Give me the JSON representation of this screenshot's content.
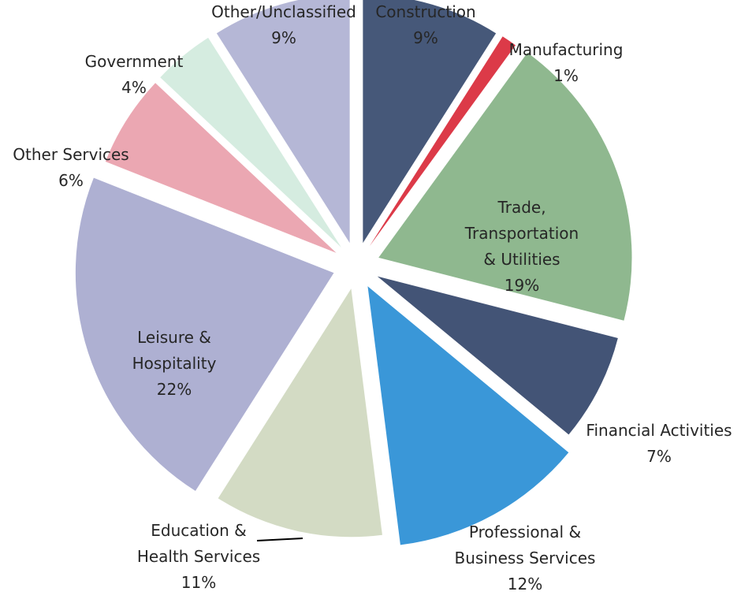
{
  "chart_data": {
    "type": "pie",
    "title": "",
    "exploded": true,
    "legend": "none",
    "slices": [
      {
        "category": "Construction",
        "label_lines": [
          "Construction"
        ],
        "pct_label": "9%",
        "value": 9,
        "color": "#465879"
      },
      {
        "category": "Manufacturing",
        "label_lines": [
          "Manufacturing"
        ],
        "pct_label": "1%",
        "value": 1,
        "color": "#dc3a48"
      },
      {
        "category": "Trade, Transportation & Utilities",
        "label_lines": [
          "Trade,",
          "Transportation",
          "& Utilities"
        ],
        "pct_label": "19%",
        "value": 19,
        "color": "#8fb88f"
      },
      {
        "category": "Financial Activities",
        "label_lines": [
          "Financial Activities"
        ],
        "pct_label": "7%",
        "value": 7,
        "color": "#435476"
      },
      {
        "category": "Professional & Business Services",
        "label_lines": [
          "Professional &",
          "Business Services"
        ],
        "pct_label": "12%",
        "value": 12,
        "color": "#3a97d8"
      },
      {
        "category": "Education & Health Services",
        "label_lines": [
          "Education &",
          "Health Services"
        ],
        "pct_label": "11%",
        "value": 11,
        "color": "#d3dbc4"
      },
      {
        "category": "Leisure & Hospitality",
        "label_lines": [
          "Leisure &",
          "Hospitality"
        ],
        "pct_label": "22%",
        "value": 22,
        "color": "#aeb0d2"
      },
      {
        "category": "Other Services",
        "label_lines": [
          "Other Services"
        ],
        "pct_label": "6%",
        "value": 6,
        "color": "#eba7b2"
      },
      {
        "category": "Government",
        "label_lines": [
          "Government"
        ],
        "pct_label": "4%",
        "value": 4,
        "color": "#d5ece0"
      },
      {
        "category": "Other/Unclassified",
        "label_lines": [
          "Other/Unclassified"
        ],
        "pct_label": "9%",
        "value": 9,
        "color": "#b5b7d6"
      }
    ]
  }
}
